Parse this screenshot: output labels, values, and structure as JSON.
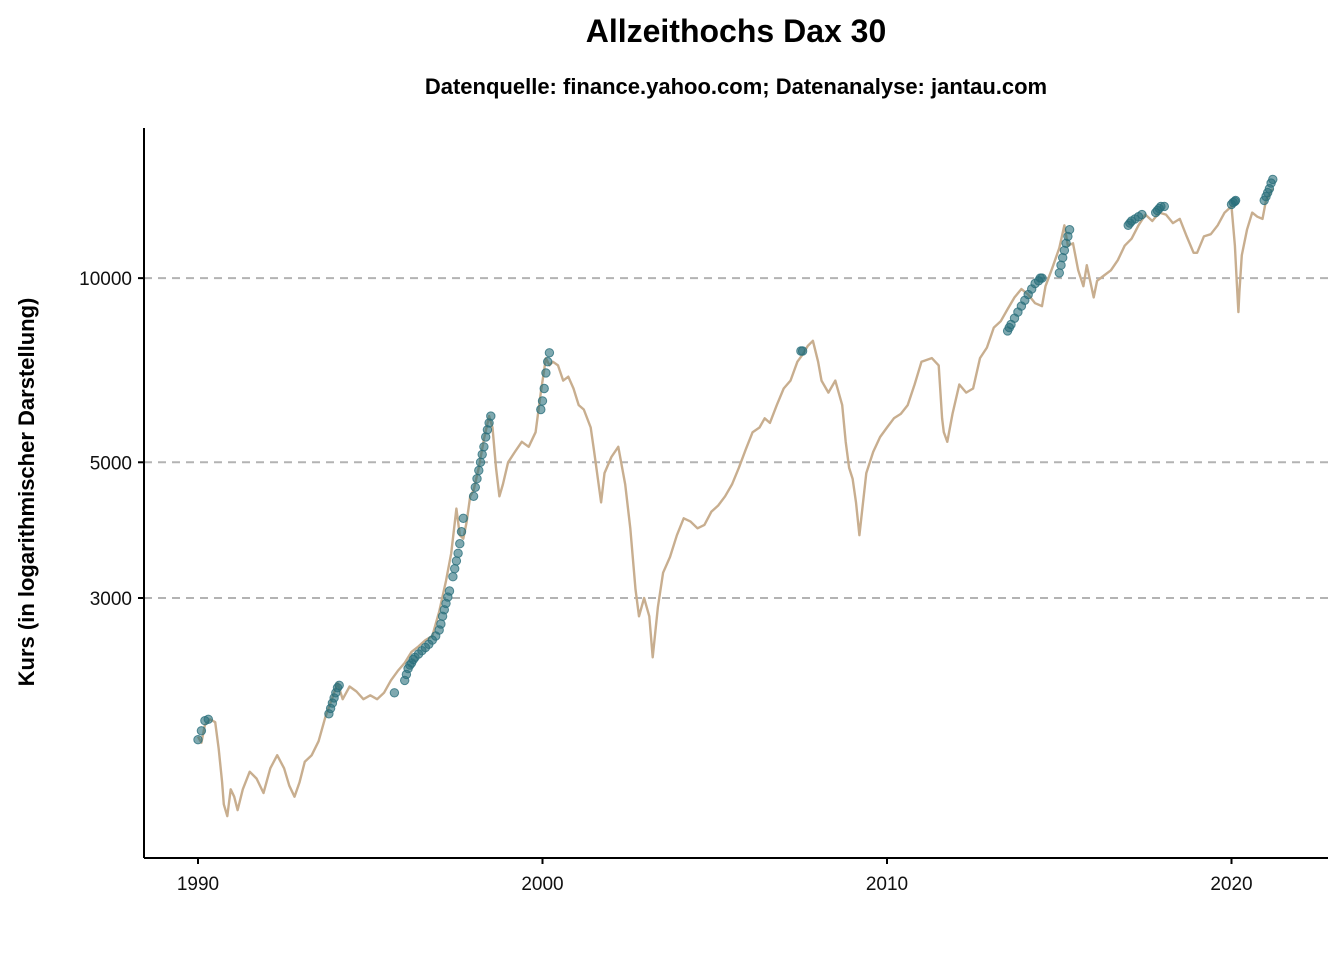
{
  "chart_data": {
    "type": "line",
    "title": "Allzeithochs Dax 30",
    "subtitle": "Datenquelle: finance.yahoo.com; Datenanalyse: jantau.com",
    "xlabel": "",
    "ylabel": "Kurs (in logarithmischer Darstellung)",
    "y_scale": "log",
    "xlim": [
      1989.5,
      2022.5
    ],
    "ylim": [
      1100,
      15600
    ],
    "x_ticks": [
      {
        "value": 1990,
        "label": "1990"
      },
      {
        "value": 2000,
        "label": "2000"
      },
      {
        "value": 2010,
        "label": "2010"
      },
      {
        "value": 2020,
        "label": "2020"
      }
    ],
    "y_ticks": [
      {
        "value": 3000,
        "label": "3000"
      },
      {
        "value": 5000,
        "label": "5000"
      },
      {
        "value": 10000,
        "label": "10000"
      }
    ],
    "grid": "horizontal dashed at y ticks",
    "legend": "none",
    "colors": {
      "line": "#c8ae8f",
      "highs": "#2a6f7c",
      "grid": "#b3b3b3",
      "axis": "#000000"
    },
    "series": [
      {
        "name": "",
        "role": "line",
        "x": [
          1990.0,
          1990.1,
          1990.2,
          1990.35,
          1990.5,
          1990.6,
          1990.7,
          1990.75,
          1990.85,
          1990.95,
          1991.05,
          1991.15,
          1991.3,
          1991.5,
          1991.7,
          1991.9,
          1992.1,
          1992.3,
          1992.5,
          1992.65,
          1992.8,
          1992.95,
          1993.1,
          1993.3,
          1993.5,
          1993.7,
          1993.9,
          1994.05,
          1994.2,
          1994.4,
          1994.6,
          1994.8,
          1995.0,
          1995.2,
          1995.4,
          1995.6,
          1995.8,
          1996.0,
          1996.2,
          1996.4,
          1996.6,
          1996.8,
          1997.0,
          1997.2,
          1997.35,
          1997.5,
          1997.6,
          1997.7,
          1997.8,
          1997.9,
          1998.0,
          1998.15,
          1998.3,
          1998.45,
          1998.55,
          1998.65,
          1998.75,
          1998.85,
          1999.0,
          1999.2,
          1999.4,
          1999.6,
          1999.8,
          1999.95,
          2000.1,
          2000.2,
          2000.3,
          2000.45,
          2000.6,
          2000.75,
          2000.9,
          2001.05,
          2001.2,
          2001.4,
          2001.5,
          2001.7,
          2001.8,
          2002.0,
          2002.2,
          2002.4,
          2002.55,
          2002.7,
          2002.8,
          2002.95,
          2003.1,
          2003.2,
          2003.35,
          2003.5,
          2003.7,
          2003.9,
          2004.1,
          2004.3,
          2004.5,
          2004.7,
          2004.9,
          2005.1,
          2005.3,
          2005.5,
          2005.7,
          2005.9,
          2006.1,
          2006.3,
          2006.45,
          2006.6,
          2006.8,
          2007.0,
          2007.2,
          2007.4,
          2007.55,
          2007.7,
          2007.85,
          2008.0,
          2008.1,
          2008.3,
          2008.5,
          2008.7,
          2008.8,
          2008.9,
          2009.0,
          2009.1,
          2009.2,
          2009.4,
          2009.6,
          2009.8,
          2010.0,
          2010.2,
          2010.4,
          2010.6,
          2010.8,
          2011.0,
          2011.3,
          2011.5,
          2011.6,
          2011.65,
          2011.75,
          2011.9,
          2012.1,
          2012.3,
          2012.5,
          2012.7,
          2012.9,
          2013.1,
          2013.3,
          2013.5,
          2013.7,
          2013.9,
          2014.1,
          2014.3,
          2014.5,
          2014.6,
          2014.8,
          2015.0,
          2015.15,
          2015.25,
          2015.4,
          2015.55,
          2015.7,
          2015.8,
          2016.0,
          2016.1,
          2016.3,
          2016.5,
          2016.7,
          2016.9,
          2017.1,
          2017.3,
          2017.5,
          2017.7,
          2017.9,
          2018.1,
          2018.3,
          2018.5,
          2018.7,
          2018.9,
          2019.0,
          2019.2,
          2019.4,
          2019.6,
          2019.8,
          2020.0,
          2020.1,
          2020.15,
          2020.2,
          2020.23,
          2020.3,
          2020.45,
          2020.6,
          2020.75,
          2020.9,
          2021.0,
          2021.1,
          2021.2
        ],
        "y": [
          1780,
          1740,
          1860,
          1900,
          1880,
          1700,
          1500,
          1380,
          1320,
          1460,
          1420,
          1350,
          1460,
          1560,
          1520,
          1440,
          1580,
          1660,
          1580,
          1480,
          1420,
          1500,
          1620,
          1660,
          1750,
          1920,
          2060,
          2180,
          2050,
          2150,
          2110,
          2050,
          2080,
          2050,
          2100,
          2200,
          2280,
          2350,
          2450,
          2500,
          2560,
          2600,
          2850,
          3200,
          3550,
          4200,
          3800,
          3750,
          4000,
          4400,
          4500,
          4900,
          5450,
          5950,
          5700,
          4900,
          4400,
          4600,
          5000,
          5200,
          5400,
          5300,
          5600,
          6500,
          7400,
          7200,
          7300,
          7200,
          6800,
          6900,
          6600,
          6200,
          6100,
          5700,
          5200,
          4300,
          4800,
          5100,
          5300,
          4600,
          3900,
          3100,
          2800,
          3000,
          2800,
          2400,
          2900,
          3300,
          3500,
          3800,
          4050,
          4000,
          3900,
          3950,
          4150,
          4250,
          4400,
          4600,
          4900,
          5250,
          5600,
          5700,
          5900,
          5800,
          6200,
          6600,
          6800,
          7300,
          7500,
          7750,
          7900,
          7300,
          6800,
          6500,
          6800,
          6200,
          5400,
          4900,
          4700,
          4300,
          3800,
          4800,
          5200,
          5500,
          5700,
          5900,
          6000,
          6200,
          6700,
          7300,
          7400,
          7200,
          5900,
          5600,
          5400,
          6000,
          6700,
          6500,
          6600,
          7400,
          7700,
          8300,
          8500,
          8900,
          9300,
          9600,
          9400,
          9100,
          9000,
          9700,
          10400,
          11200,
          12200,
          11300,
          11400,
          10300,
          9700,
          10500,
          9300,
          9900,
          10100,
          10300,
          10700,
          11300,
          11600,
          12200,
          12700,
          12400,
          12800,
          12700,
          12300,
          12500,
          11700,
          11000,
          11000,
          11700,
          11800,
          12200,
          12800,
          13100,
          11300,
          9900,
          8800,
          9500,
          10900,
          12000,
          12800,
          12600,
          12500,
          13400,
          13700,
          14000
        ]
      },
      {
        "name": "",
        "role": "all-time-highs",
        "x": [
          1990.0,
          1990.1,
          1990.2,
          1990.3,
          1993.8,
          1993.85,
          1993.9,
          1993.95,
          1994.0,
          1994.05,
          1994.1,
          1995.7,
          1996.0,
          1996.05,
          1996.1,
          1996.15,
          1996.2,
          1996.25,
          1996.3,
          1996.4,
          1996.5,
          1996.6,
          1996.7,
          1996.8,
          1996.9,
          1997.0,
          1997.05,
          1997.1,
          1997.15,
          1997.2,
          1997.25,
          1997.3,
          1997.4,
          1997.45,
          1997.5,
          1997.55,
          1997.6,
          1997.65,
          1997.7,
          1998.0,
          1998.05,
          1998.1,
          1998.15,
          1998.2,
          1998.25,
          1998.3,
          1998.35,
          1998.4,
          1998.45,
          1998.5,
          1999.95,
          2000.0,
          2000.05,
          2000.1,
          2000.15,
          2000.2,
          2007.5,
          2007.55,
          2013.5,
          2013.55,
          2013.6,
          2013.7,
          2013.8,
          2013.9,
          2014.0,
          2014.1,
          2014.2,
          2014.3,
          2014.4,
          2014.45,
          2014.5,
          2015.0,
          2015.05,
          2015.1,
          2015.15,
          2015.2,
          2015.25,
          2015.3,
          2017.0,
          2017.05,
          2017.1,
          2017.2,
          2017.3,
          2017.4,
          2017.8,
          2017.85,
          2017.9,
          2017.95,
          2018.05,
          2020.0,
          2020.05,
          2020.1,
          2020.12,
          2020.95,
          2021.0,
          2021.05,
          2021.1,
          2021.15,
          2021.2
        ],
        "y": [
          1760,
          1820,
          1890,
          1900,
          1940,
          1980,
          2020,
          2060,
          2100,
          2140,
          2160,
          2100,
          2200,
          2250,
          2300,
          2330,
          2350,
          2380,
          2400,
          2430,
          2460,
          2490,
          2520,
          2560,
          2600,
          2660,
          2720,
          2800,
          2870,
          2940,
          3010,
          3080,
          3250,
          3350,
          3450,
          3550,
          3680,
          3850,
          4050,
          4400,
          4550,
          4700,
          4850,
          5000,
          5150,
          5300,
          5500,
          5650,
          5800,
          5950,
          6100,
          6300,
          6600,
          7000,
          7300,
          7550,
          7600,
          7600,
          8200,
          8300,
          8400,
          8600,
          8800,
          9000,
          9200,
          9400,
          9600,
          9800,
          9900,
          10000,
          10000,
          10200,
          10500,
          10800,
          11100,
          11400,
          11700,
          12000,
          12200,
          12300,
          12400,
          12500,
          12600,
          12700,
          12800,
          12900,
          13000,
          13100,
          13100,
          13200,
          13300,
          13350,
          13400,
          13400,
          13600,
          13800,
          14000,
          14300,
          14500
        ]
      }
    ]
  }
}
